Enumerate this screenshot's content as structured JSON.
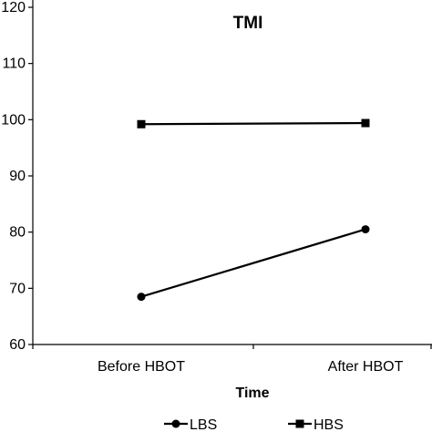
{
  "chart_data": {
    "type": "line",
    "title": "TMI",
    "xlabel": "Time",
    "ylabel": "",
    "categories": [
      "Before HBOT",
      "After HBOT"
    ],
    "ylim": [
      60,
      120
    ],
    "yticks": [
      60,
      70,
      80,
      90,
      100,
      110,
      120
    ],
    "ytick_labels": [
      "60",
      "70",
      "80",
      "90",
      "100",
      "110",
      "120"
    ],
    "grid": false,
    "legend_position": "bottom",
    "series": [
      {
        "name": "LBS",
        "values": [
          68.5,
          80.5
        ],
        "marker": "circle",
        "color": "#000000"
      },
      {
        "name": "HBS",
        "values": [
          99.2,
          99.4
        ],
        "marker": "square",
        "color": "#000000"
      }
    ]
  }
}
